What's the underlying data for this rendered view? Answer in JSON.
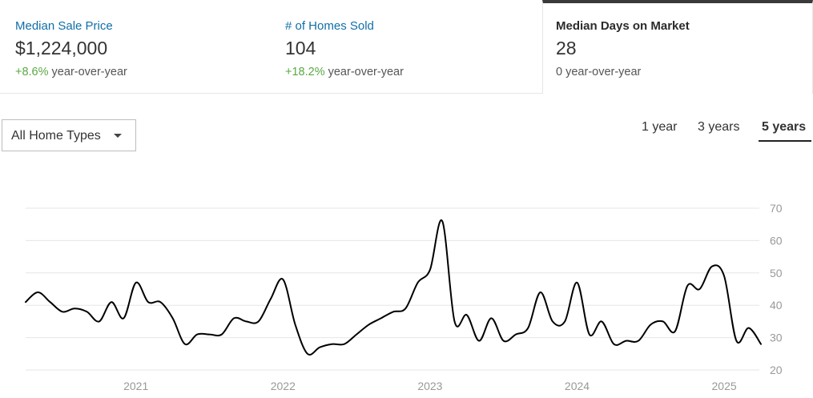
{
  "stats": [
    {
      "label": "Median Sale Price",
      "value": "$1,224,000",
      "delta": "+8.6%",
      "suffix": " year-over-year"
    },
    {
      "label": "# of Homes Sold",
      "value": "104",
      "delta": "+18.2%",
      "suffix": " year-over-year"
    },
    {
      "label": "Median Days on Market",
      "value": "28",
      "delta": "0",
      "suffix": " year-over-year",
      "selected": true
    }
  ],
  "filter": {
    "label": "All Home Types"
  },
  "ranges": {
    "options": [
      "1 year",
      "3 years",
      "5 years"
    ],
    "selected": "5 years"
  },
  "colors": {
    "link": "#0f6fa8",
    "positive": "#5aa843",
    "line": "#000000",
    "grid": "#e6e6e6"
  },
  "chart_data": {
    "type": "line",
    "title": "",
    "xlabel": "",
    "ylabel": "",
    "ylim": [
      20,
      70
    ],
    "yticks": [
      20,
      30,
      40,
      50,
      60,
      70
    ],
    "xticks": [
      "2021",
      "2022",
      "2023",
      "2024",
      "2025"
    ],
    "grid": true,
    "x": [
      "2020-04",
      "2020-05",
      "2020-06",
      "2020-07",
      "2020-08",
      "2020-09",
      "2020-10",
      "2020-11",
      "2020-12",
      "2021-01",
      "2021-02",
      "2021-03",
      "2021-04",
      "2021-05",
      "2021-06",
      "2021-07",
      "2021-08",
      "2021-09",
      "2021-10",
      "2021-11",
      "2021-12",
      "2022-01",
      "2022-02",
      "2022-03",
      "2022-04",
      "2022-05",
      "2022-06",
      "2022-07",
      "2022-08",
      "2022-09",
      "2022-10",
      "2022-11",
      "2022-12",
      "2023-01",
      "2023-02",
      "2023-03",
      "2023-04",
      "2023-05",
      "2023-06",
      "2023-07",
      "2023-08",
      "2023-09",
      "2023-10",
      "2023-11",
      "2023-12",
      "2024-01",
      "2024-02",
      "2024-03",
      "2024-04",
      "2024-05",
      "2024-06",
      "2024-07",
      "2024-08",
      "2024-09",
      "2024-10",
      "2024-11",
      "2024-12",
      "2025-01",
      "2025-02",
      "2025-03",
      "2025-04"
    ],
    "series": [
      {
        "values": [
          41,
          44,
          41,
          38,
          39,
          38,
          35,
          41,
          36,
          47,
          41,
          41,
          36,
          28,
          31,
          31,
          31,
          36,
          35,
          35,
          42,
          48,
          34,
          25,
          27,
          28,
          28,
          31,
          34,
          36,
          38,
          39,
          47,
          51,
          66,
          35,
          37,
          29,
          36,
          29,
          31,
          33,
          44,
          35,
          35,
          47,
          31,
          35,
          28,
          29,
          29,
          34,
          35,
          32,
          46,
          45,
          52,
          49,
          29,
          33,
          28
        ]
      }
    ]
  }
}
